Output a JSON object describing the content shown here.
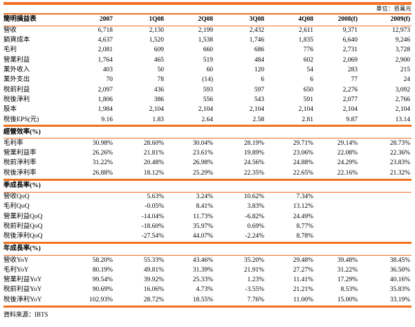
{
  "unit_note": "單位：佰萬元",
  "source_note": "資料來源：IBTS",
  "accent_color": "#F37021",
  "table": {
    "title": "簡明損益表",
    "columns": [
      "2007",
      "1Q08",
      "2Q08",
      "3Q08",
      "4Q08",
      "2008(f)",
      "2009(f)"
    ],
    "sections": [
      {
        "header": null,
        "rows": [
          {
            "label": "營收",
            "values": [
              "6,718",
              "2,130",
              "2,199",
              "2,432",
              "2,611",
              "9,371",
              "12,973"
            ]
          },
          {
            "label": "銷貨成本",
            "values": [
              "4,637",
              "1,520",
              "1,538",
              "1,746",
              "1,835",
              "6,640",
              "9,246"
            ]
          },
          {
            "label": "毛利",
            "values": [
              "2,081",
              "609",
              "660",
              "686",
              "776",
              "2,731",
              "3,728"
            ]
          },
          {
            "label": "營業利益",
            "values": [
              "1,764",
              "465",
              "519",
              "484",
              "602",
              "2,069",
              "2,900"
            ]
          },
          {
            "label": "業外收入",
            "values": [
              "403",
              "50",
              "60",
              "120",
              "54",
              "283",
              "215"
            ]
          },
          {
            "label": "業外支出",
            "values": [
              "70",
              "78",
              "(14)",
              "6",
              "6",
              "77",
              "24"
            ]
          },
          {
            "label": "稅前利益",
            "values": [
              "2,097",
              "436",
              "593",
              "597",
              "650",
              "2,276",
              "3,092"
            ]
          },
          {
            "label": "稅後淨利",
            "values": [
              "1,806",
              "386",
              "556",
              "543",
              "591",
              "2,077",
              "2,766"
            ]
          },
          {
            "label": "股本",
            "values": [
              "1,984",
              "2,104",
              "2,104",
              "2,104",
              "2,104",
              "2,104",
              "2,104"
            ]
          },
          {
            "label": "稅後EPS(元)",
            "values": [
              "9.16",
              "1.83",
              "2.64",
              "2.58",
              "2.81",
              "9.87",
              "13.14"
            ]
          }
        ]
      },
      {
        "header": "經營效率(%)",
        "rows": [
          {
            "label": "毛利率",
            "values": [
              "30.98%",
              "28.60%",
              "30.04%",
              "28.19%",
              "29.71%",
              "29.14%",
              "28.73%"
            ]
          },
          {
            "label": "營業利益率",
            "values": [
              "26.26%",
              "21.81%",
              "23.61%",
              "19.89%",
              "23.06%",
              "22.08%",
              "22.36%"
            ]
          },
          {
            "label": "稅前淨利率",
            "values": [
              "31.22%",
              "20.48%",
              "26.98%",
              "24.56%",
              "24.88%",
              "24.29%",
              "23.83%"
            ]
          },
          {
            "label": "稅後淨利率",
            "values": [
              "26.88%",
              "18.12%",
              "25.29%",
              "22.35%",
              "22.65%",
              "22.16%",
              "21.32%"
            ]
          }
        ]
      },
      {
        "header": "季成長率(%)",
        "rows": [
          {
            "label": "營收QoQ",
            "values": [
              "",
              "5.63%",
              "3.24%",
              "10.62%",
              "7.34%",
              "",
              ""
            ]
          },
          {
            "label": "毛利QoQ",
            "values": [
              "",
              "-0.05%",
              "8.41%",
              "3.83%",
              "13.12%",
              "",
              ""
            ]
          },
          {
            "label": "營業利益QoQ",
            "values": [
              "",
              "-14.04%",
              "11.73%",
              "-6.82%",
              "24.49%",
              "",
              ""
            ]
          },
          {
            "label": "稅前利益QoQ",
            "values": [
              "",
              "-18.60%",
              "35.97%",
              "0.69%",
              "8.77%",
              "",
              ""
            ]
          },
          {
            "label": "稅後淨利QoQ",
            "values": [
              "",
              "-27.54%",
              "44.07%",
              "-2.24%",
              "8.78%",
              "",
              ""
            ]
          }
        ]
      },
      {
        "header": "年成長率(%)",
        "rows": [
          {
            "label": "營收YoY",
            "values": [
              "58.20%",
              "55.33%",
              "43.46%",
              "35.20%",
              "29.48%",
              "39.48%",
              "38.45%"
            ]
          },
          {
            "label": "毛利YoY",
            "values": [
              "80.19%",
              "49.81%",
              "31.39%",
              "21.91%",
              "27.27%",
              "31.22%",
              "36.50%"
            ]
          },
          {
            "label": "營業利益YoY",
            "values": [
              "99.54%",
              "39.92%",
              "25.33%",
              "1.23%",
              "11.41%",
              "17.29%",
              "40.16%"
            ]
          },
          {
            "label": "稅前利益YoY",
            "values": [
              "90.69%",
              "16.06%",
              "4.73%",
              "-3.55%",
              "21.21%",
              "8.53%",
              "35.83%"
            ]
          },
          {
            "label": "稅後淨利YoY",
            "values": [
              "102.93%",
              "28.72%",
              "18.55%",
              "7.76%",
              "11.00%",
              "15.00%",
              "33.19%"
            ]
          }
        ]
      }
    ]
  }
}
